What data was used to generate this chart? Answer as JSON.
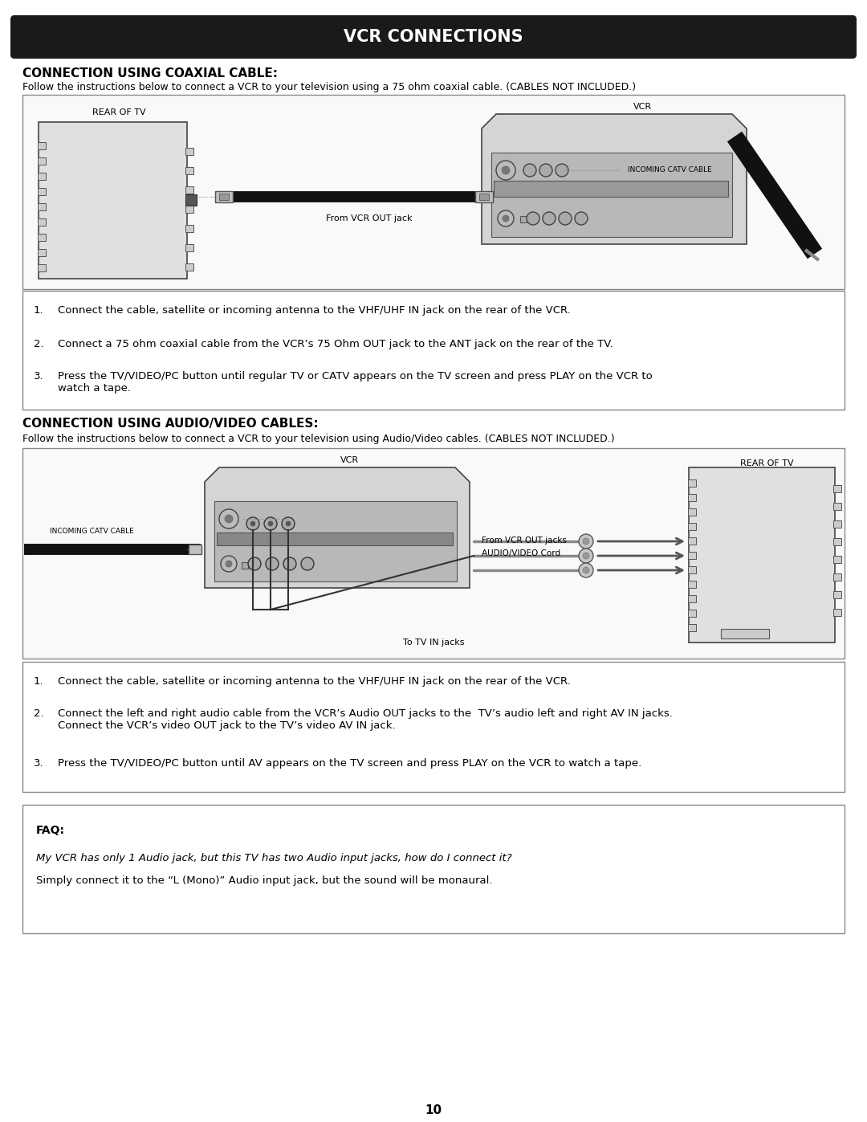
{
  "title": "VCR CONNECTIONS",
  "section1_title": "CONNECTION USING COAXIAL CABLE:",
  "section1_desc": "Follow the instructions below to connect a VCR to your television using a 75 ohm coaxial cable. (CABLES NOT INCLUDED.)",
  "section1_steps": [
    "1.   Connect the cable, satellite or incoming antenna to the VHF/UHF IN jack on the rear of the VCR.",
    "2.   Connect a 75 ohm coaxial cable from the VCR’s 75 Ohm OUT jack to the ANT jack on the rear of the TV.",
    "3.   Press the TV/VIDEO/PC button until regular TV or CATV appears on the TV screen and press PLAY on the VCR to\n      watch a tape."
  ],
  "section2_title": "CONNECTION USING AUDIO/VIDEO CABLES:",
  "section2_desc": "Follow the instructions below to connect a VCR to your television using Audio/Video cables. (CABLES NOT INCLUDED.)",
  "section2_steps": [
    "1.   Connect the cable, satellite or incoming antenna to the VHF/UHF IN jack on the rear of the VCR.",
    "2.   Connect the left and right audio cable from the VCR’s Audio OUT jacks to the  TV’s audio left and right AV IN jacks.\n      Connect the VCR’s video OUT jack to the TV’s video AV IN jack.",
    "3.   Press the TV/VIDEO/PC button until AV appears on the TV screen and press PLAY on the VCR to watch a tape."
  ],
  "faq_title": "FAQ:",
  "faq_q": "My VCR has only 1 Audio jack, but this TV has two Audio input jacks, how do I connect it?",
  "faq_a": "Simply connect it to the “L (Mono)” Audio input jack, but the sound will be monaural.",
  "page_num": "10",
  "bg_color": "#ffffff",
  "header_bg": "#1a1a1a",
  "header_text_color": "#ffffff",
  "text_color": "#000000",
  "box_edge": "#888888",
  "vcr_body": "#d5d5d5",
  "vcr_panel": "#b8b8b8",
  "tv_body": "#e0e0e0",
  "tv_conn": "#cccccc"
}
